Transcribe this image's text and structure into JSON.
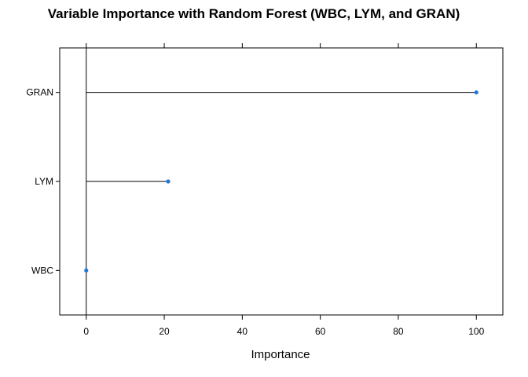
{
  "chart_data": {
    "type": "dot",
    "title": "Variable Importance with Random Forest (WBC, LYM, and GRAN)",
    "xlabel": "Importance",
    "ylabel": "",
    "categories": [
      "GRAN",
      "LYM",
      "WBC"
    ],
    "values": [
      100,
      21,
      0
    ],
    "xlim": [
      -6.8,
      106.8
    ],
    "xticks": [
      0,
      20,
      40,
      60,
      80,
      100
    ],
    "grid": false,
    "legend": "none",
    "colors": {
      "point": "#1f78d6",
      "line": "#000000",
      "frame": "#000000"
    }
  }
}
